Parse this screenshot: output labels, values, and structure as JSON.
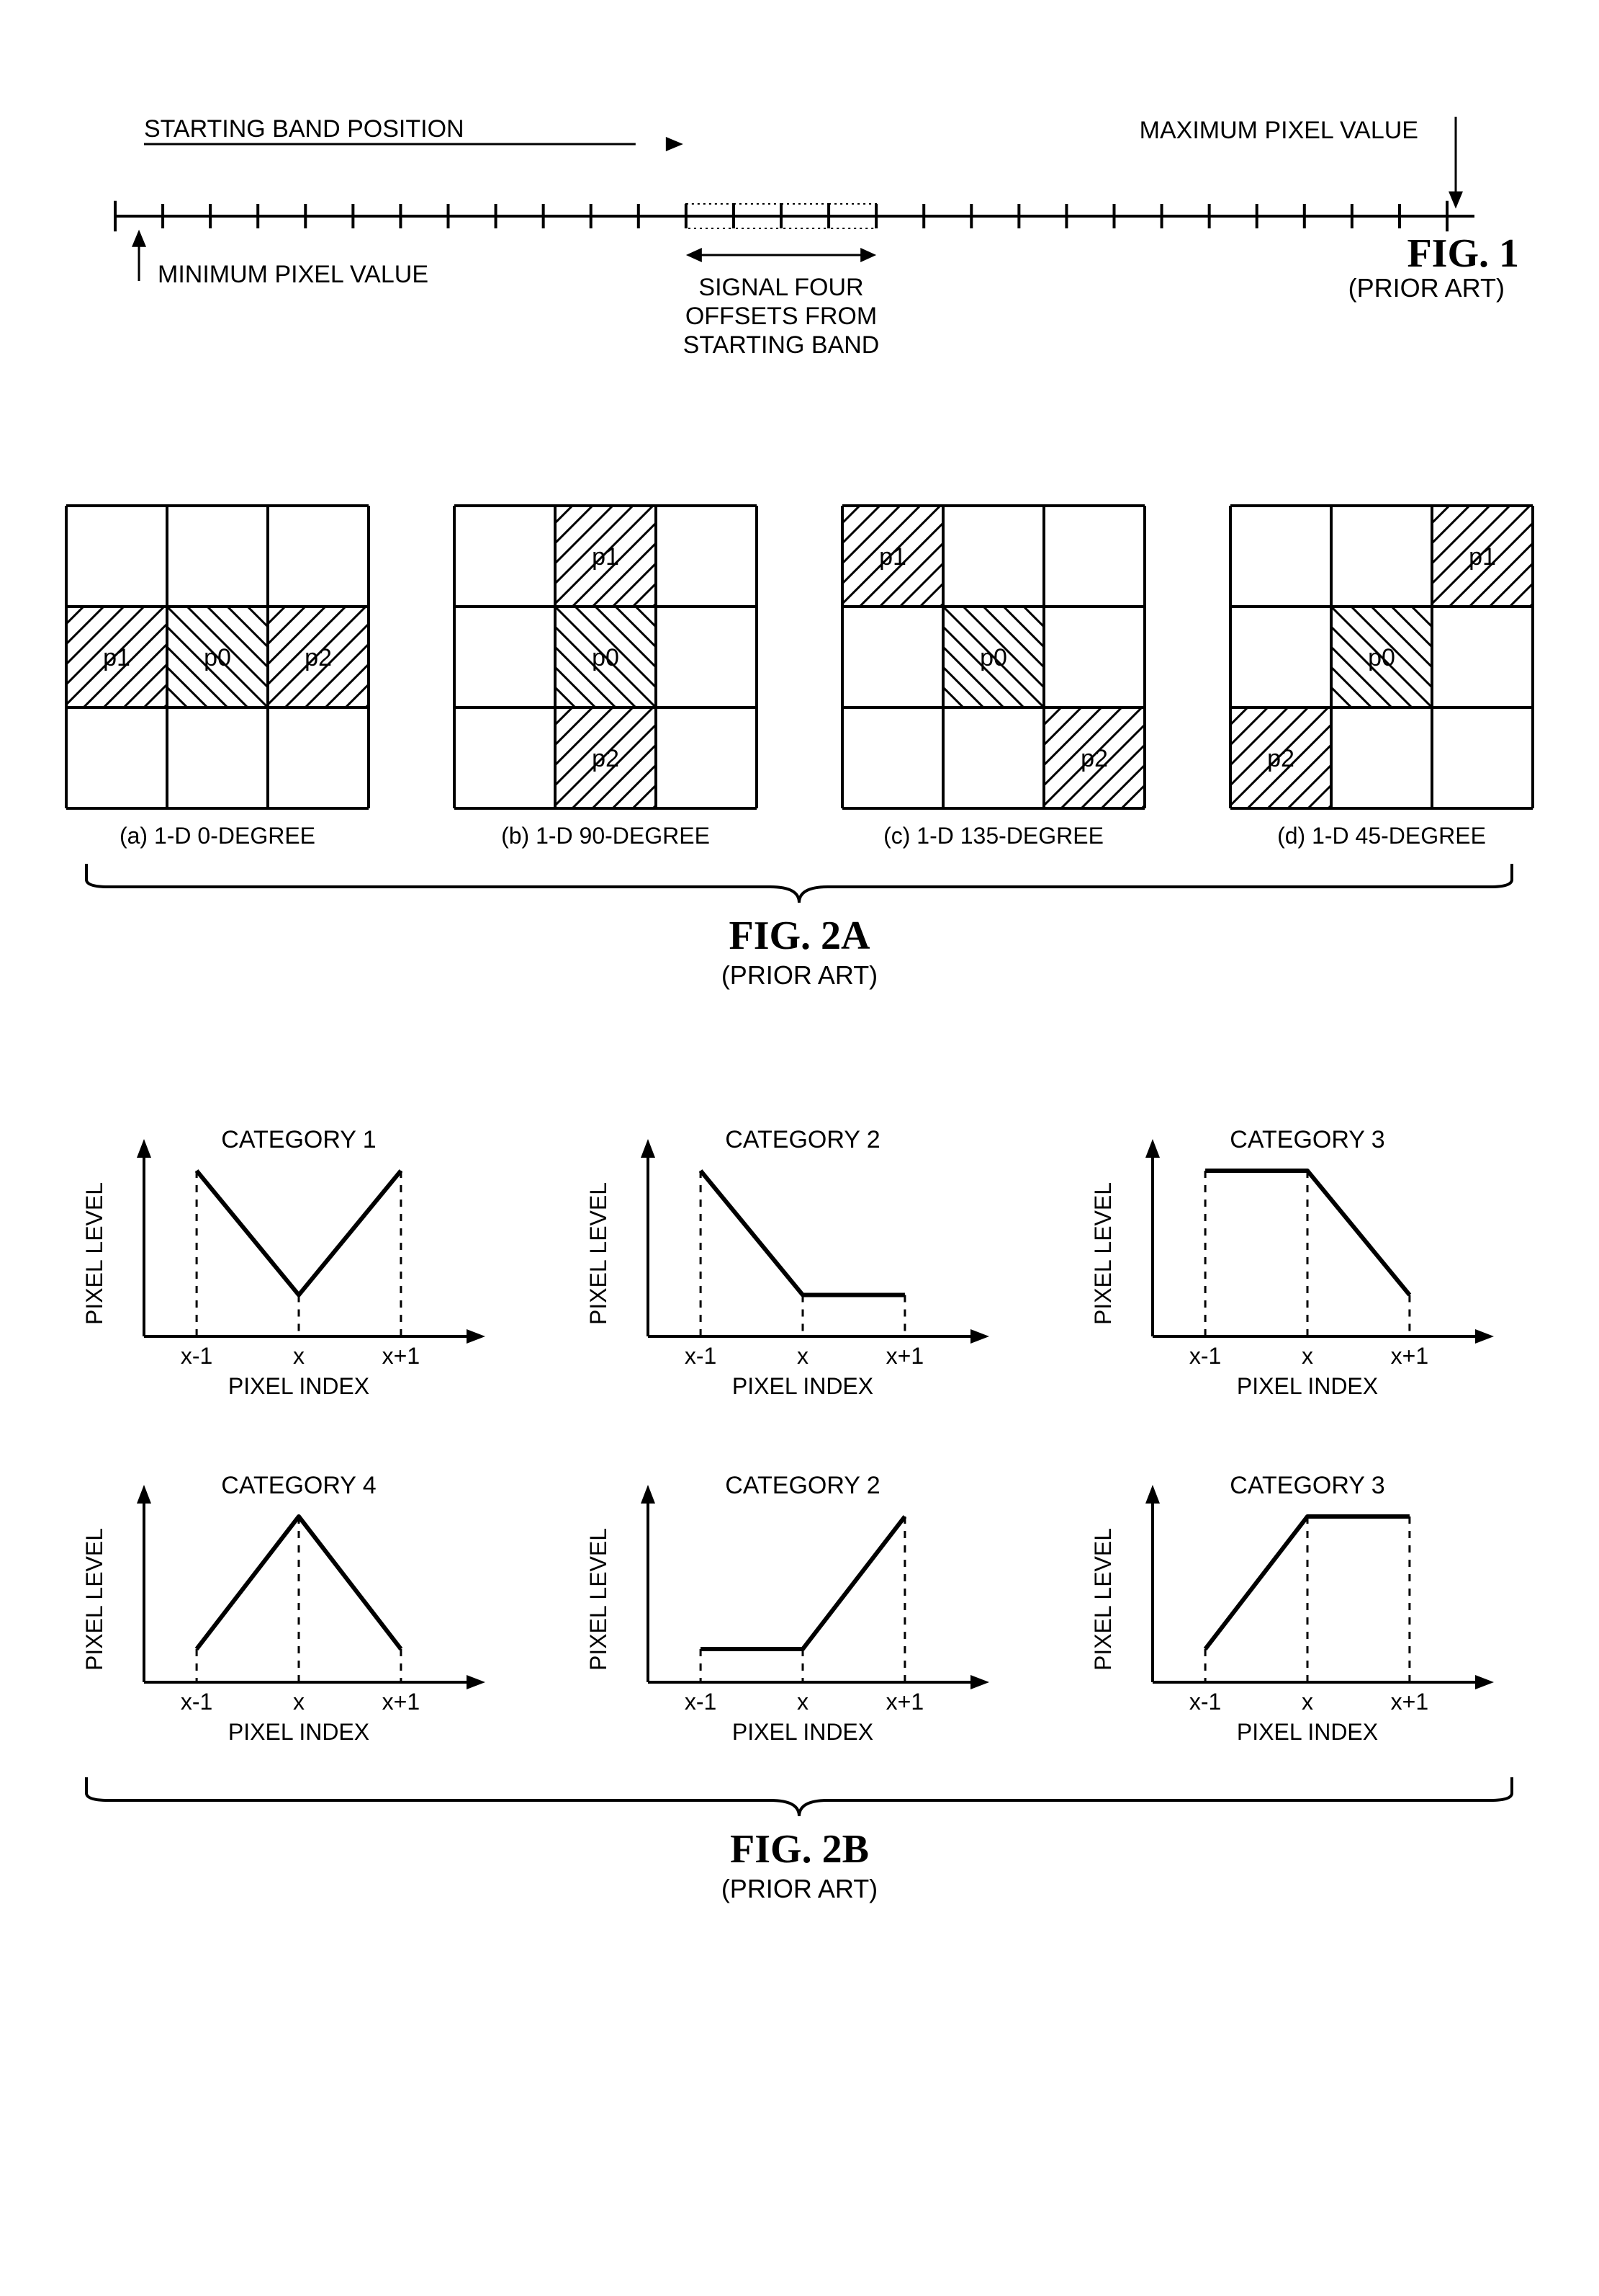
{
  "figure1": {
    "type": "diagram-numberline",
    "title": "FIG. 1",
    "subtitle": "(PRIOR ART)",
    "labels": {
      "startingBand": "STARTING BAND POSITION",
      "maxPixel": "MAXIMUM PIXEL VALUE",
      "minPixel": "MINIMUM PIXEL VALUE",
      "signalFour": "SIGNAL FOUR\nOFFSETS FROM\nSTARTING BAND"
    },
    "total_ticks": 29,
    "highlight_start_index": 12,
    "highlight_count": 4,
    "line_color": "#000000",
    "line_width": 4,
    "tick_height": 34,
    "label_fontsize": 34,
    "title_fontsize": 56,
    "subtitle_fontsize": 36
  },
  "figure2a": {
    "type": "grid-diagrams",
    "title": "FIG. 2A",
    "subtitle": "(PRIOR ART)",
    "grid_border_width": 4,
    "cell_size": 140,
    "label_fontsize": 34,
    "panel_label_fontsize": 32,
    "hatch": {
      "fg": "#000000",
      "bg": "#ffffff"
    },
    "panels": [
      {
        "id": "a",
        "caption": "(a) 1-D 0-DEGREE",
        "cells": [
          {
            "r": 1,
            "c": 0,
            "label": "p1",
            "hatch": "diag"
          },
          {
            "r": 1,
            "c": 1,
            "label": "p0",
            "hatch": "bdiag"
          },
          {
            "r": 1,
            "c": 2,
            "label": "p2",
            "hatch": "diag"
          }
        ]
      },
      {
        "id": "b",
        "caption": "(b) 1-D 90-DEGREE",
        "cells": [
          {
            "r": 0,
            "c": 1,
            "label": "p1",
            "hatch": "diag"
          },
          {
            "r": 1,
            "c": 1,
            "label": "p0",
            "hatch": "bdiag"
          },
          {
            "r": 2,
            "c": 1,
            "label": "p2",
            "hatch": "diag"
          }
        ]
      },
      {
        "id": "c",
        "caption": "(c) 1-D 135-DEGREE",
        "cells": [
          {
            "r": 0,
            "c": 0,
            "label": "p1",
            "hatch": "diag"
          },
          {
            "r": 1,
            "c": 1,
            "label": "p0",
            "hatch": "bdiag"
          },
          {
            "r": 2,
            "c": 2,
            "label": "p2",
            "hatch": "diag"
          }
        ]
      },
      {
        "id": "d",
        "caption": "(d) 1-D 45-DEGREE",
        "cells": [
          {
            "r": 0,
            "c": 2,
            "label": "p1",
            "hatch": "diag"
          },
          {
            "r": 1,
            "c": 1,
            "label": "p0",
            "hatch": "bdiag"
          },
          {
            "r": 2,
            "c": 0,
            "label": "p2",
            "hatch": "diag"
          }
        ]
      }
    ]
  },
  "figure2b": {
    "type": "line-charts-grid",
    "title": "FIG. 2B",
    "subtitle": "(PRIOR ART)",
    "axis_color": "#000000",
    "line_color": "#000000",
    "line_width": 6,
    "axis_width": 4,
    "dash_pattern": "10,10",
    "ylabel": "PIXEL LEVEL",
    "xlabel": "PIXEL INDEX",
    "xticks": [
      "x-1",
      "x",
      "x+1"
    ],
    "label_fontsize": 32,
    "title_fontsize_panel": 34,
    "panels": [
      {
        "title": "CATEGORY 1",
        "points": [
          [
            0,
            1.0
          ],
          [
            1,
            0.25
          ],
          [
            2,
            1.0
          ]
        ]
      },
      {
        "title": "CATEGORY 2",
        "points": [
          [
            0,
            1.0
          ],
          [
            1,
            0.25
          ],
          [
            2,
            0.25
          ]
        ]
      },
      {
        "title": "CATEGORY 3",
        "points": [
          [
            0,
            1.0
          ],
          [
            1,
            1.0
          ],
          [
            2,
            0.25
          ]
        ]
      },
      {
        "title": "CATEGORY 4",
        "points": [
          [
            0,
            0.2
          ],
          [
            1,
            1.0
          ],
          [
            2,
            0.2
          ]
        ]
      },
      {
        "title": "CATEGORY 2",
        "points": [
          [
            0,
            0.2
          ],
          [
            1,
            0.2
          ],
          [
            2,
            1.0
          ]
        ]
      },
      {
        "title": "CATEGORY 3",
        "points": [
          [
            0,
            0.2
          ],
          [
            1,
            1.0
          ],
          [
            2,
            1.0
          ]
        ]
      }
    ]
  }
}
